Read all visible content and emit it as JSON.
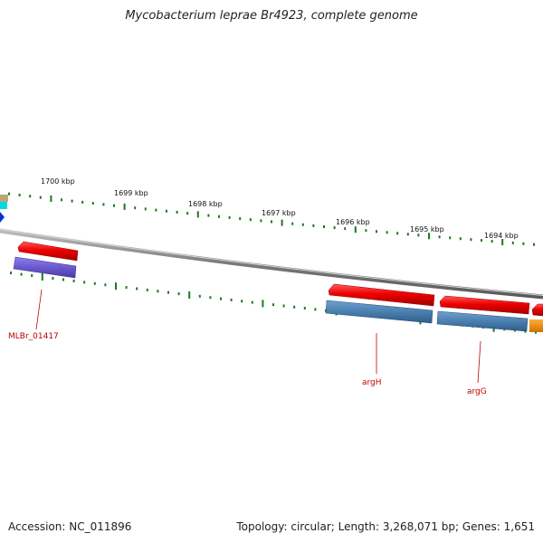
{
  "title": "Mycobacterium leprae Br4923, complete genome",
  "footer": {
    "accession": "Accession: NC_011896",
    "summary": "Topology: circular; Length: 3,268,071 bp; Genes: 1,651"
  },
  "scale_labels": [
    "1700 kbp",
    "1699 kbp",
    "1698 kbp",
    "1697 kbp",
    "1696 kbp",
    "1695 kbp",
    "1694 kbp"
  ],
  "gene_labels": [
    "MLBr_01417",
    "argH",
    "argG"
  ],
  "colors": {
    "backbone": "#8a8a8a",
    "tick": "#1a7a1a",
    "cds_forward": "#ee1111",
    "gene_blue": "#4a7fb0",
    "gene_purple": "#6a5acd",
    "gene_orange": "#f08c00",
    "gene_label": "#c00000"
  }
}
